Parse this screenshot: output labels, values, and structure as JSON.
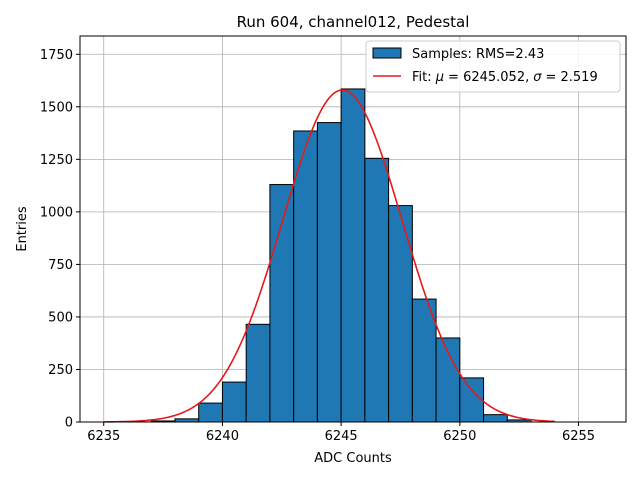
{
  "chart_data": {
    "type": "bar",
    "title": "Run 604, channel012, Pedestal",
    "xlabel": "ADC Counts",
    "ylabel": "Entries",
    "xlim": [
      6234,
      6257
    ],
    "ylim": [
      0,
      1837
    ],
    "xticks": [
      6235,
      6240,
      6245,
      6250,
      6255
    ],
    "yticks": [
      0,
      250,
      500,
      750,
      1000,
      1250,
      1500,
      1750
    ],
    "grid": true,
    "legend_position": "top-right",
    "histogram": {
      "name": "Samples: RMS=2.43",
      "color": "#1f77b4",
      "edge_color": "#000000",
      "bin_width": 1,
      "bin_edges": [
        6237,
        6238,
        6239,
        6240,
        6241,
        6242,
        6243,
        6244,
        6245,
        6246,
        6247,
        6248,
        6249,
        6250,
        6251,
        6252,
        6253
      ],
      "values": [
        5,
        15,
        90,
        190,
        465,
        1130,
        1385,
        1425,
        1585,
        1255,
        1030,
        585,
        400,
        210,
        35,
        10
      ]
    },
    "fit": {
      "name_prefix": "Fit: ",
      "mu_symbol": "μ",
      "mu_value": "= 6245.052,",
      "sigma_symbol": "σ",
      "sigma_value": "= 2.519",
      "color": "#e41a1c",
      "mu": 6245.052,
      "sigma": 2.519,
      "amplitude": 1580,
      "x_range": [
        6235,
        6254
      ]
    }
  }
}
